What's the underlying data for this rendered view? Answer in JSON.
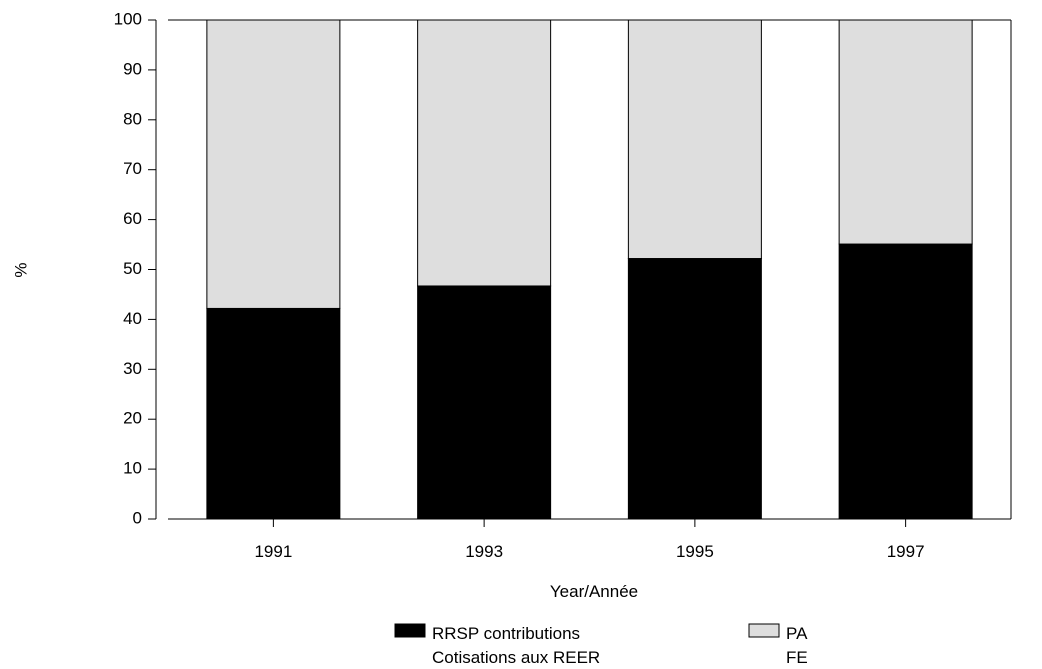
{
  "chart_data": {
    "type": "bar",
    "stacked": true,
    "categories": [
      "1991",
      "1993",
      "1995",
      "1997"
    ],
    "series": [
      {
        "name": "RRSP contributions",
        "name_fr": "Cotisations aux REER",
        "values": [
          42.2,
          46.7,
          52.2,
          55.1
        ]
      },
      {
        "name": "PA",
        "name_fr": "FE",
        "values": [
          57.8,
          53.3,
          47.8,
          44.9
        ]
      }
    ],
    "xlabel": "Year/Année",
    "ylabel": "%",
    "ylim": [
      0,
      100
    ],
    "yticks": [
      "0",
      "10",
      "20",
      "30",
      "40",
      "50",
      "60",
      "70",
      "80",
      "90",
      "100"
    ],
    "grid": false,
    "legend_position": "bottom",
    "colors": {
      "RRSP contributions": "#000000",
      "PA": "#dedede"
    }
  }
}
